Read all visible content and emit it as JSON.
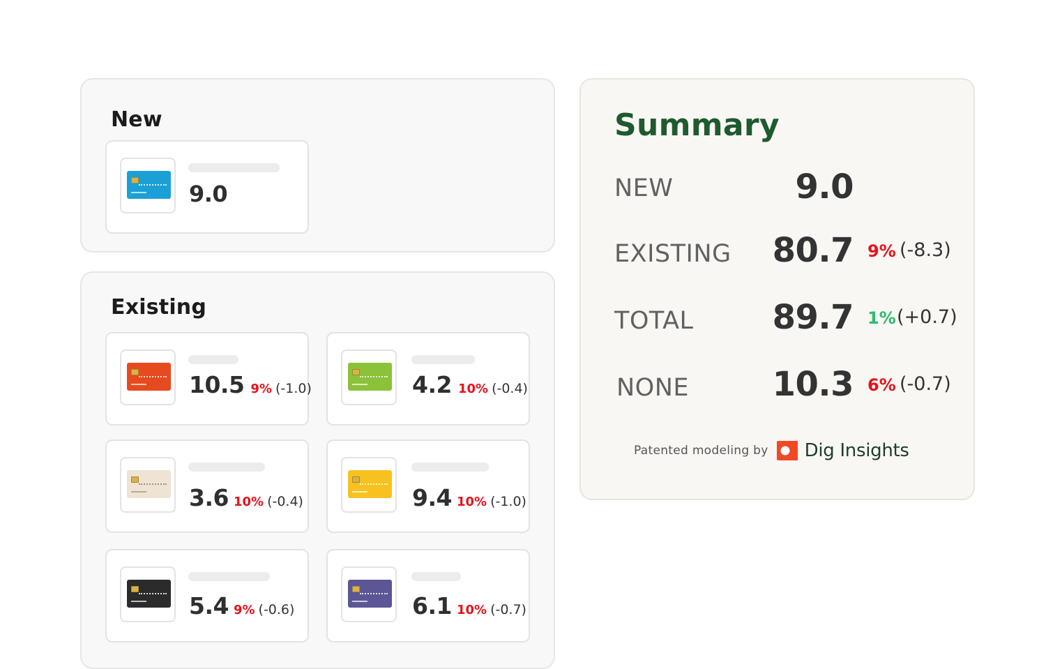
{
  "new_section": {
    "title": "New",
    "cards": [
      {
        "value": "9.0",
        "card_color": "#1aa0d6"
      }
    ]
  },
  "existing_section": {
    "title": "Existing",
    "cards": [
      {
        "value": "10.5",
        "pct": "9%",
        "delta": "(-1.0)",
        "card_color": "#e64a1e"
      },
      {
        "value": "4.2",
        "pct": "10%",
        "delta": "(-0.4)",
        "card_color": "#8cc13a"
      },
      {
        "value": "3.6",
        "pct": "10%",
        "delta": "(-0.4)",
        "card_color": "#efe4d4"
      },
      {
        "value": "9.4",
        "pct": "10%",
        "delta": "(-1.0)",
        "card_color": "#f7c21f"
      },
      {
        "value": "5.4",
        "pct": "9%",
        "delta": "(-0.6)",
        "card_color": "#2b2b2b"
      },
      {
        "value": "6.1",
        "pct": "10%",
        "delta": "(-0.7)",
        "card_color": "#5c5596"
      }
    ]
  },
  "summary": {
    "title": "Summary",
    "rows": [
      {
        "label": "NEW",
        "value": "9.0",
        "pct": "",
        "delta": ""
      },
      {
        "label": "EXISTING",
        "value": "80.7",
        "pct": "9%",
        "delta": "(-8.3)"
      },
      {
        "label": "TOTAL",
        "value": "89.7",
        "pct": "1%",
        "delta": "(+0.7)"
      },
      {
        "label": "NONE",
        "value": "10.3",
        "pct": "6%",
        "delta": "(-0.7)"
      }
    ],
    "footer": {
      "prefix": "Patented modeling by",
      "brand": "Dig Insights",
      "logo_icon": "dig-insights-logo-icon"
    }
  },
  "colors": {
    "negative": "#e8121b",
    "positive": "#2dbb6e",
    "summary_title": "#1e5a2d",
    "brand_orange": "#ef4a23"
  }
}
